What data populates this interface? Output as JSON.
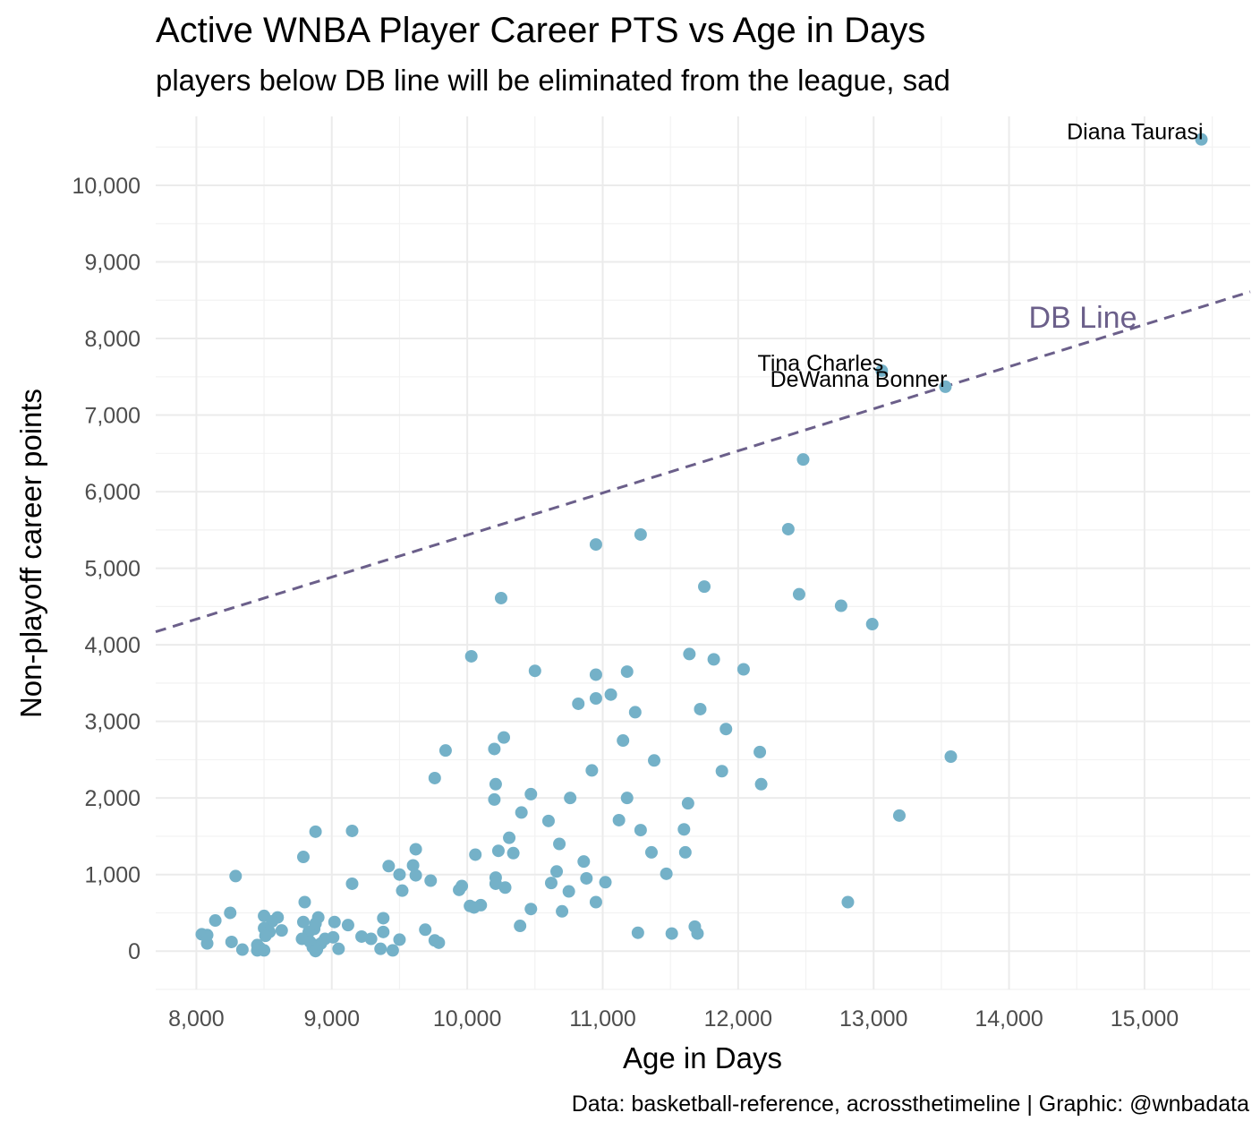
{
  "chart_data": {
    "type": "scatter",
    "title": "Active WNBA Player Career PTS vs Age in Days",
    "subtitle": "players below DB line will be eliminated from the league, sad",
    "xlabel": "Age in Days",
    "ylabel": "Non-playoff career points",
    "caption": "Data: basketball-reference, acrossthetimeline | Graphic: @wnbadata",
    "xlim": [
      7700,
      15780
    ],
    "ylim": [
      -500,
      10900
    ],
    "x_ticks": [
      8000,
      9000,
      10000,
      11000,
      12000,
      13000,
      14000,
      15000
    ],
    "x_tick_labels": [
      "8,000",
      "9,000",
      "10,000",
      "11,000",
      "12,000",
      "13,000",
      "14,000",
      "15,000"
    ],
    "y_ticks": [
      0,
      1000,
      2000,
      3000,
      4000,
      5000,
      6000,
      7000,
      8000,
      9000,
      10000
    ],
    "y_tick_labels": [
      "0",
      "1,000",
      "2,000",
      "3,000",
      "4,000",
      "5,000",
      "6,000",
      "7,000",
      "8,000",
      "9,000",
      "10,000"
    ],
    "grid": true,
    "point_color": "#74b1c8",
    "reference_line": {
      "label": "DB Line",
      "color": "#6b5f8a",
      "style": "dashed",
      "points": [
        [
          7700,
          4170
        ],
        [
          15780,
          8610
        ]
      ]
    },
    "labeled_points": [
      {
        "name": "Diana Taurasi",
        "x": 15420,
        "y": 10600
      },
      {
        "name": "Tina Charles",
        "x": 13060,
        "y": 7580
      },
      {
        "name": "DeWanna Bonner",
        "x": 13530,
        "y": 7370
      }
    ],
    "points": [
      {
        "x": 15420,
        "y": 10600
      },
      {
        "x": 13060,
        "y": 7580
      },
      {
        "x": 13530,
        "y": 7370
      },
      {
        "x": 12480,
        "y": 6420
      },
      {
        "x": 12370,
        "y": 5510
      },
      {
        "x": 11280,
        "y": 5440
      },
      {
        "x": 10950,
        "y": 5310
      },
      {
        "x": 11750,
        "y": 4760
      },
      {
        "x": 12450,
        "y": 4660
      },
      {
        "x": 10250,
        "y": 4610
      },
      {
        "x": 12760,
        "y": 4510
      },
      {
        "x": 12990,
        "y": 4270
      },
      {
        "x": 10030,
        "y": 3850
      },
      {
        "x": 11640,
        "y": 3880
      },
      {
        "x": 11820,
        "y": 3810
      },
      {
        "x": 12040,
        "y": 3680
      },
      {
        "x": 10500,
        "y": 3660
      },
      {
        "x": 11180,
        "y": 3650
      },
      {
        "x": 10950,
        "y": 3610
      },
      {
        "x": 11060,
        "y": 3350
      },
      {
        "x": 10950,
        "y": 3300
      },
      {
        "x": 10820,
        "y": 3230
      },
      {
        "x": 11720,
        "y": 3160
      },
      {
        "x": 11240,
        "y": 3120
      },
      {
        "x": 11910,
        "y": 2900
      },
      {
        "x": 10270,
        "y": 2790
      },
      {
        "x": 11150,
        "y": 2750
      },
      {
        "x": 9840,
        "y": 2620
      },
      {
        "x": 10200,
        "y": 2640
      },
      {
        "x": 12160,
        "y": 2600
      },
      {
        "x": 13570,
        "y": 2540
      },
      {
        "x": 11380,
        "y": 2490
      },
      {
        "x": 10920,
        "y": 2360
      },
      {
        "x": 11880,
        "y": 2350
      },
      {
        "x": 9760,
        "y": 2260
      },
      {
        "x": 10210,
        "y": 2180
      },
      {
        "x": 12170,
        "y": 2180
      },
      {
        "x": 10470,
        "y": 2050
      },
      {
        "x": 10200,
        "y": 1980
      },
      {
        "x": 10760,
        "y": 2000
      },
      {
        "x": 11180,
        "y": 2000
      },
      {
        "x": 11630,
        "y": 1930
      },
      {
        "x": 10400,
        "y": 1810
      },
      {
        "x": 13190,
        "y": 1770
      },
      {
        "x": 10600,
        "y": 1700
      },
      {
        "x": 11120,
        "y": 1710
      },
      {
        "x": 8880,
        "y": 1560
      },
      {
        "x": 9150,
        "y": 1570
      },
      {
        "x": 11280,
        "y": 1580
      },
      {
        "x": 11600,
        "y": 1590
      },
      {
        "x": 10310,
        "y": 1480
      },
      {
        "x": 10680,
        "y": 1400
      },
      {
        "x": 9620,
        "y": 1330
      },
      {
        "x": 10230,
        "y": 1310
      },
      {
        "x": 10340,
        "y": 1280
      },
      {
        "x": 10060,
        "y": 1260
      },
      {
        "x": 11360,
        "y": 1290
      },
      {
        "x": 11610,
        "y": 1290
      },
      {
        "x": 8790,
        "y": 1230
      },
      {
        "x": 10860,
        "y": 1170
      },
      {
        "x": 9420,
        "y": 1110
      },
      {
        "x": 9600,
        "y": 1120
      },
      {
        "x": 10660,
        "y": 1040
      },
      {
        "x": 9500,
        "y": 1000
      },
      {
        "x": 9620,
        "y": 990
      },
      {
        "x": 11470,
        "y": 1010
      },
      {
        "x": 8290,
        "y": 980
      },
      {
        "x": 10210,
        "y": 960
      },
      {
        "x": 10880,
        "y": 950
      },
      {
        "x": 9730,
        "y": 920
      },
      {
        "x": 11020,
        "y": 900
      },
      {
        "x": 10620,
        "y": 890
      },
      {
        "x": 10210,
        "y": 880
      },
      {
        "x": 9150,
        "y": 880
      },
      {
        "x": 9960,
        "y": 850
      },
      {
        "x": 10280,
        "y": 830
      },
      {
        "x": 9940,
        "y": 800
      },
      {
        "x": 9520,
        "y": 790
      },
      {
        "x": 10750,
        "y": 780
      },
      {
        "x": 12810,
        "y": 640
      },
      {
        "x": 8800,
        "y": 640
      },
      {
        "x": 10950,
        "y": 640
      },
      {
        "x": 10100,
        "y": 600
      },
      {
        "x": 10020,
        "y": 590
      },
      {
        "x": 10050,
        "y": 570
      },
      {
        "x": 10470,
        "y": 550
      },
      {
        "x": 10700,
        "y": 520
      },
      {
        "x": 8250,
        "y": 500
      },
      {
        "x": 8500,
        "y": 460
      },
      {
        "x": 8900,
        "y": 440
      },
      {
        "x": 8600,
        "y": 440
      },
      {
        "x": 9380,
        "y": 430
      },
      {
        "x": 8140,
        "y": 400
      },
      {
        "x": 8560,
        "y": 390
      },
      {
        "x": 8790,
        "y": 380
      },
      {
        "x": 9020,
        "y": 380
      },
      {
        "x": 8880,
        "y": 360
      },
      {
        "x": 9120,
        "y": 340
      },
      {
        "x": 10390,
        "y": 330
      },
      {
        "x": 11680,
        "y": 320
      },
      {
        "x": 8500,
        "y": 300
      },
      {
        "x": 8870,
        "y": 290
      },
      {
        "x": 9690,
        "y": 280
      },
      {
        "x": 8630,
        "y": 270
      },
      {
        "x": 8540,
        "y": 250
      },
      {
        "x": 8830,
        "y": 250
      },
      {
        "x": 9380,
        "y": 250
      },
      {
        "x": 11260,
        "y": 240
      },
      {
        "x": 11510,
        "y": 230
      },
      {
        "x": 11700,
        "y": 230
      },
      {
        "x": 8040,
        "y": 220
      },
      {
        "x": 8080,
        "y": 210
      },
      {
        "x": 8510,
        "y": 200
      },
      {
        "x": 9220,
        "y": 190
      },
      {
        "x": 9010,
        "y": 180
      },
      {
        "x": 8780,
        "y": 160
      },
      {
        "x": 8950,
        "y": 160
      },
      {
        "x": 9290,
        "y": 160
      },
      {
        "x": 9500,
        "y": 150
      },
      {
        "x": 9760,
        "y": 140
      },
      {
        "x": 8840,
        "y": 120
      },
      {
        "x": 8260,
        "y": 120
      },
      {
        "x": 9790,
        "y": 110
      },
      {
        "x": 8080,
        "y": 100
      },
      {
        "x": 8920,
        "y": 100
      },
      {
        "x": 8900,
        "y": 80
      },
      {
        "x": 8450,
        "y": 80
      },
      {
        "x": 8860,
        "y": 50
      },
      {
        "x": 8470,
        "y": 40
      },
      {
        "x": 9050,
        "y": 30
      },
      {
        "x": 9360,
        "y": 30
      },
      {
        "x": 8340,
        "y": 20
      },
      {
        "x": 8890,
        "y": 20
      },
      {
        "x": 8450,
        "y": 10
      },
      {
        "x": 8500,
        "y": 10
      },
      {
        "x": 9450,
        "y": 10
      },
      {
        "x": 8880,
        "y": 0
      }
    ]
  }
}
